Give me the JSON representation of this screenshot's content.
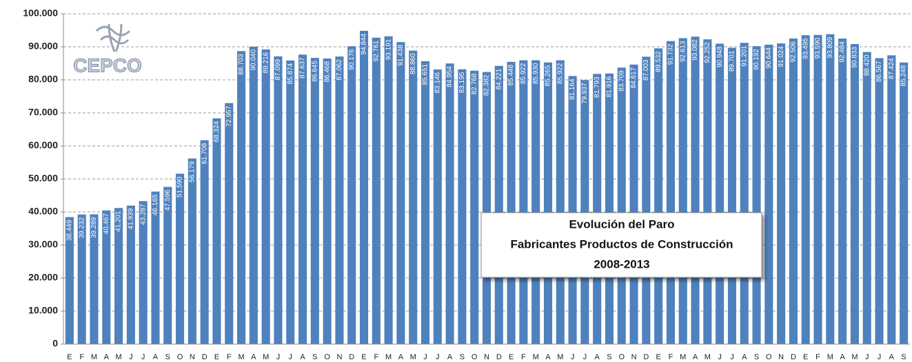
{
  "chart_data": {
    "type": "bar",
    "logo": "CEPCO",
    "title_lines": [
      "Evolución del Paro",
      "Fabricantes Productos de Construcción",
      "2008-2013"
    ],
    "color": "#4f81bd",
    "grid": true,
    "categories": [
      "E",
      "F",
      "M",
      "A",
      "M",
      "J",
      "J",
      "A",
      "S",
      "O",
      "N",
      "D",
      "E",
      "F",
      "M",
      "A",
      "M",
      "J",
      "J",
      "A",
      "S",
      "O",
      "N",
      "D",
      "E",
      "F",
      "M",
      "A",
      "M",
      "J",
      "J",
      "A",
      "S",
      "O",
      "N",
      "D",
      "E",
      "F",
      "M",
      "A",
      "M",
      "J",
      "J",
      "A",
      "S",
      "O",
      "N",
      "D",
      "E",
      "F",
      "M",
      "A",
      "M",
      "J",
      "J",
      "A",
      "S",
      "O",
      "N",
      "D",
      "E",
      "F",
      "M",
      "A",
      "M",
      "J",
      "J",
      "A",
      "S"
    ],
    "values": [
      38449,
      39232,
      39289,
      40467,
      41201,
      41939,
      43287,
      46165,
      47596,
      51590,
      56179,
      61708,
      68324,
      72957,
      88703,
      90040,
      89216,
      87099,
      85874,
      87637,
      86645,
      86468,
      87062,
      90176,
      94844,
      92761,
      93191,
      91438,
      88860,
      85651,
      83146,
      84954,
      83195,
      82768,
      82382,
      84221,
      85448,
      85922,
      85930,
      85265,
      85922,
      81164,
      79937,
      81793,
      81916,
      83709,
      84617,
      87003,
      89532,
      91732,
      92613,
      93082,
      92252,
      90948,
      89701,
      91201,
      90192,
      90644,
      91024,
      92506,
      93495,
      93590,
      93809,
      92484,
      90833,
      88420,
      86567,
      87424,
      85248
    ],
    "value_labels": [
      "38.449",
      "39.232",
      "39.289",
      "40.467",
      "41.201",
      "41.939",
      "43.287",
      "46.165",
      "47.596",
      "51.590",
      "56.179",
      "61.708",
      "68.324",
      "72.957",
      "88.703",
      "90.040",
      "89.216",
      "87.099",
      "85.874",
      "87.637",
      "86.645",
      "86.468",
      "87.062",
      "90.176",
      "94.844",
      "92.761",
      "93.191",
      "91.438",
      "88.860",
      "85.651",
      "83.146",
      "84.954",
      "83.195",
      "82.768",
      "82.382",
      "84.221",
      "85.448",
      "85.922",
      "85.930",
      "85.265",
      "85.922",
      "81.164",
      "79.937",
      "81.793",
      "81.916",
      "83.709",
      "84.617",
      "87.003",
      "89.532",
      "91.732",
      "92.613",
      "93.082",
      "92.252",
      "90.948",
      "89.701",
      "91.201",
      "90.192",
      "90.644",
      "91.024",
      "92.506",
      "93.495",
      "93.590",
      "93.809",
      "92.484",
      "90.833",
      "88.420",
      "86.567",
      "87.424",
      "85.248"
    ],
    "ylim": [
      0,
      100000
    ],
    "yticks": [
      0,
      {
        "value": 10000,
        "label": "10.000"
      },
      {
        "value": 20000,
        "label": "20.000"
      },
      {
        "value": 30000,
        "label": "30.000"
      },
      {
        "value": 40000,
        "label": "40.000"
      },
      {
        "value": 50000,
        "label": "50.000"
      },
      {
        "value": 60000,
        "label": "60.000"
      },
      {
        "value": 70000,
        "label": "70.000"
      },
      {
        "value": 80000,
        "label": "80.000"
      },
      {
        "value": 90000,
        "label": "90.000"
      },
      {
        "value": 100000,
        "label": "100.000"
      }
    ]
  }
}
